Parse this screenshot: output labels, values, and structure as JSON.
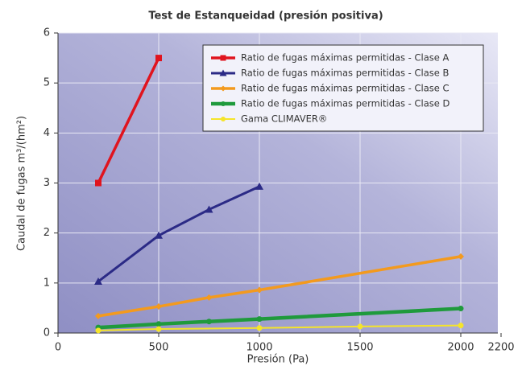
{
  "chart_data": {
    "type": "line",
    "title": "Test de Estanqueidad (presión positiva)",
    "x_label": "Presión (Pa)",
    "y_label": "Caudal de fugas  m³/(hm²)",
    "xlim": [
      0,
      2200
    ],
    "xticks": [
      0,
      500,
      1000,
      1500,
      2000,
      2200
    ],
    "ylim": [
      0,
      6
    ],
    "yticks": [
      0,
      1,
      2,
      3,
      4,
      5,
      6
    ],
    "grid": true,
    "legend": "upper right",
    "series": [
      {
        "name": "Ratio de fugas máximas permitidas - Clase A",
        "color": "#e0141e",
        "marker": "square",
        "x": [
          200,
          500
        ],
        "values": [
          3,
          5.5
        ]
      },
      {
        "name": "Ratio de fugas máximas permitidas - Clase B",
        "color": "#2b2a86",
        "marker": "triangle",
        "x": [
          200,
          500,
          750,
          1000
        ],
        "values": [
          1.03,
          1.95,
          2.47,
          2.93
        ]
      },
      {
        "name": "Ratio de fugas máximas permitidas - Clase C",
        "color": "#f39a1e",
        "marker": "diamond",
        "x": [
          200,
          500,
          750,
          1000,
          2000
        ],
        "values": [
          0.34,
          0.53,
          0.71,
          0.86,
          1.53
        ]
      },
      {
        "name": "Ratio de fugas máximas permitidas - Clase D",
        "color": "#1f9a3c",
        "marker": "circle",
        "x": [
          200,
          500,
          750,
          1000,
          2000
        ],
        "values": [
          0.11,
          0.18,
          0.23,
          0.28,
          0.49
        ]
      },
      {
        "name": "Gama CLIMAVER®",
        "color": "#f5e42a",
        "marker": "circle",
        "x": [
          200,
          500,
          1000,
          1500,
          2000
        ],
        "values": [
          0.05,
          0.08,
          0.1,
          0.13,
          0.15
        ]
      }
    ]
  }
}
